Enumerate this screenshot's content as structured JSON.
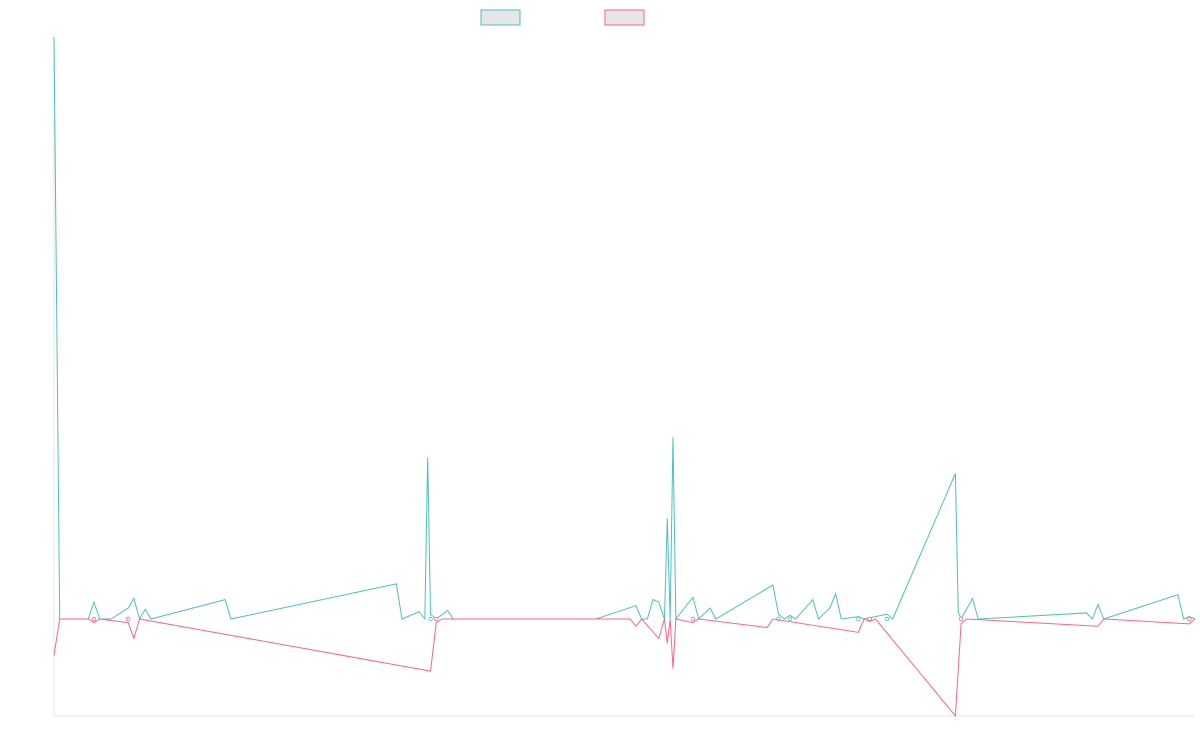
{
  "chart_data": {
    "type": "line",
    "title": "",
    "xlabel": "",
    "ylabel": "",
    "grid": false,
    "legend": "top-center",
    "x_count": 200,
    "ylim": [
      -8,
      48
    ],
    "series": [
      {
        "color": "#4bc0c0",
        "fill": "#e6e6e6",
        "points": [
          [
            0,
            48
          ],
          [
            1,
            0
          ],
          [
            6,
            0
          ],
          [
            7,
            1.4
          ],
          [
            8,
            0
          ],
          [
            9,
            0
          ],
          [
            10,
            0
          ],
          [
            13,
            0.9
          ],
          [
            14,
            1.7
          ],
          [
            15,
            0
          ],
          [
            16,
            0.8
          ],
          [
            17,
            0
          ],
          [
            30,
            1.6
          ],
          [
            31,
            0
          ],
          [
            60,
            2.9
          ],
          [
            61,
            0
          ],
          [
            64,
            0.6
          ],
          [
            65,
            0
          ],
          [
            65.5,
            13.3
          ],
          [
            66,
            0.4
          ],
          [
            67,
            0
          ],
          [
            69,
            0.7
          ],
          [
            70,
            0
          ],
          [
            95,
            0
          ],
          [
            102,
            1.1
          ],
          [
            103,
            0
          ],
          [
            104,
            0
          ],
          [
            105,
            1.6
          ],
          [
            106,
            1.4
          ],
          [
            107,
            0
          ],
          [
            107.5,
            8.3
          ],
          [
            108,
            0
          ],
          [
            108.5,
            15
          ],
          [
            109,
            0
          ],
          [
            112,
            1.8
          ],
          [
            113,
            0
          ],
          [
            115,
            0.9
          ],
          [
            116,
            0
          ],
          [
            126,
            2.8
          ],
          [
            127,
            0.4
          ],
          [
            128,
            0
          ],
          [
            129,
            0.3
          ],
          [
            130,
            0
          ],
          [
            133,
            1.6
          ],
          [
            134,
            0
          ],
          [
            136,
            0.9
          ],
          [
            137,
            2.1
          ],
          [
            138,
            0
          ],
          [
            141,
            0.2
          ],
          [
            142,
            0
          ],
          [
            146,
            0.4
          ],
          [
            147,
            0
          ],
          [
            158,
            12
          ],
          [
            158.5,
            0.6
          ],
          [
            159,
            0
          ],
          [
            161,
            1.7
          ],
          [
            162,
            0
          ],
          [
            181,
            0.5
          ],
          [
            182,
            0
          ],
          [
            183,
            1.2
          ],
          [
            184,
            0
          ],
          [
            197,
            2
          ],
          [
            198,
            0
          ],
          [
            199,
            0.2
          ],
          [
            200,
            0
          ]
        ]
      },
      {
        "color": "#ff6384",
        "fill": "#e6e6e6",
        "points": [
          [
            0,
            -3
          ],
          [
            1,
            0
          ],
          [
            6,
            0
          ],
          [
            7,
            -0.3
          ],
          [
            8,
            0
          ],
          [
            13,
            -0.3
          ],
          [
            14,
            -1.6
          ],
          [
            15,
            0
          ],
          [
            66,
            -4.3
          ],
          [
            67,
            -0.3
          ],
          [
            68,
            0
          ],
          [
            101,
            0
          ],
          [
            102,
            -0.6
          ],
          [
            103,
            0
          ],
          [
            106,
            -1.6
          ],
          [
            107,
            0
          ],
          [
            107.5,
            -2
          ],
          [
            108,
            0
          ],
          [
            108.5,
            -4.1
          ],
          [
            109,
            0
          ],
          [
            112,
            -0.3
          ],
          [
            113,
            0
          ],
          [
            125,
            -0.7
          ],
          [
            126,
            0
          ],
          [
            141,
            -1.1
          ],
          [
            142,
            0
          ],
          [
            143,
            -0.2
          ],
          [
            144,
            0
          ],
          [
            158,
            -8
          ],
          [
            159,
            -0.4
          ],
          [
            160,
            0
          ],
          [
            183,
            -0.6
          ],
          [
            184,
            0
          ],
          [
            199,
            -0.4
          ],
          [
            200,
            0
          ]
        ]
      }
    ]
  }
}
